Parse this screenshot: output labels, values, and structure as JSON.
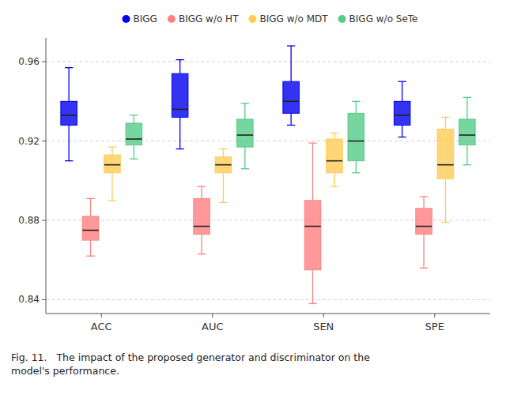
{
  "chart_data": {
    "type": "box",
    "title": "Fig. 11.   The impact of the proposed generator and discriminator on the\nmodel's performance.",
    "categories": [
      "ACC",
      "AUC",
      "SEN",
      "SPE"
    ],
    "series": [
      {
        "name": "BIGG",
        "color": "#0000ee",
        "values": [
          {
            "whislo": 0.91,
            "q1": 0.928,
            "med": 0.933,
            "q3": 0.94,
            "whishi": 0.957
          },
          {
            "whislo": 0.916,
            "q1": 0.932,
            "med": 0.936,
            "q3": 0.954,
            "whishi": 0.961
          },
          {
            "whislo": 0.928,
            "q1": 0.934,
            "med": 0.94,
            "q3": 0.95,
            "whishi": 0.968
          },
          {
            "whislo": 0.922,
            "q1": 0.928,
            "med": 0.933,
            "q3": 0.94,
            "whishi": 0.95
          }
        ]
      },
      {
        "name": "BIGG w/o HT",
        "color": "#ff8080",
        "values": [
          {
            "whislo": 0.862,
            "q1": 0.87,
            "med": 0.875,
            "q3": 0.882,
            "whishi": 0.891
          },
          {
            "whislo": 0.863,
            "q1": 0.873,
            "med": 0.877,
            "q3": 0.891,
            "whishi": 0.897
          },
          {
            "whislo": 0.838,
            "q1": 0.855,
            "med": 0.877,
            "q3": 0.89,
            "whishi": 0.919
          },
          {
            "whislo": 0.856,
            "q1": 0.873,
            "med": 0.877,
            "q3": 0.886,
            "whishi": 0.892
          }
        ]
      },
      {
        "name": "BIGG w/o MDT",
        "color": "#ffcc55",
        "values": [
          {
            "whislo": 0.89,
            "q1": 0.904,
            "med": 0.908,
            "q3": 0.913,
            "whishi": 0.917
          },
          {
            "whislo": 0.889,
            "q1": 0.904,
            "med": 0.908,
            "q3": 0.912,
            "whishi": 0.916
          },
          {
            "whislo": 0.897,
            "q1": 0.904,
            "med": 0.91,
            "q3": 0.921,
            "whishi": 0.924
          },
          {
            "whislo": 0.879,
            "q1": 0.901,
            "med": 0.908,
            "q3": 0.926,
            "whishi": 0.932
          }
        ]
      },
      {
        "name": "BIGG w/o SeTe",
        "color": "#55cc88",
        "values": [
          {
            "whislo": 0.911,
            "q1": 0.918,
            "med": 0.921,
            "q3": 0.929,
            "whishi": 0.933
          },
          {
            "whislo": 0.906,
            "q1": 0.917,
            "med": 0.923,
            "q3": 0.931,
            "whishi": 0.939
          },
          {
            "whislo": 0.904,
            "q1": 0.91,
            "med": 0.92,
            "q3": 0.934,
            "whishi": 0.94
          },
          {
            "whislo": 0.908,
            "q1": 0.918,
            "med": 0.923,
            "q3": 0.931,
            "whishi": 0.942
          }
        ]
      }
    ],
    "ylim": [
      0.833,
      0.972
    ],
    "yticks": [
      0.84,
      0.88,
      0.92,
      0.96
    ],
    "grid": true,
    "legend": "top"
  }
}
